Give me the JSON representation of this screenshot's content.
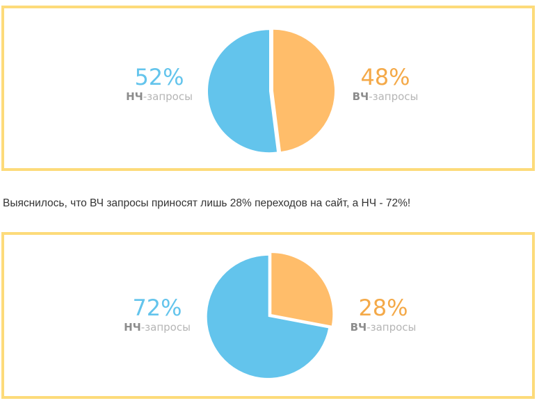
{
  "colors": {
    "border": "#fddb7a",
    "blue": "#63c4ec",
    "orange": "#f4a948",
    "orange_fill": "#ffbd6a"
  },
  "sentence": "Выяснилось, что ВЧ запросы приносят лишь 28% переходов на сайт, а НЧ - 72%!",
  "chart_data": [
    {
      "type": "pie",
      "slices": [
        {
          "label_bold": "НЧ",
          "label_rest": "-запросы",
          "percent_text": "52%",
          "value": 52,
          "color": "#63c4ec"
        },
        {
          "label_bold": "ВЧ",
          "label_rest": "-запросы",
          "percent_text": "48%",
          "value": 48,
          "color": "#ffbd6a"
        }
      ]
    },
    {
      "type": "pie",
      "slices": [
        {
          "label_bold": "НЧ",
          "label_rest": "-запросы",
          "percent_text": "72%",
          "value": 72,
          "color": "#63c4ec"
        },
        {
          "label_bold": "ВЧ",
          "label_rest": "-запросы",
          "percent_text": "28%",
          "value": 28,
          "color": "#ffbd6a"
        }
      ]
    }
  ]
}
